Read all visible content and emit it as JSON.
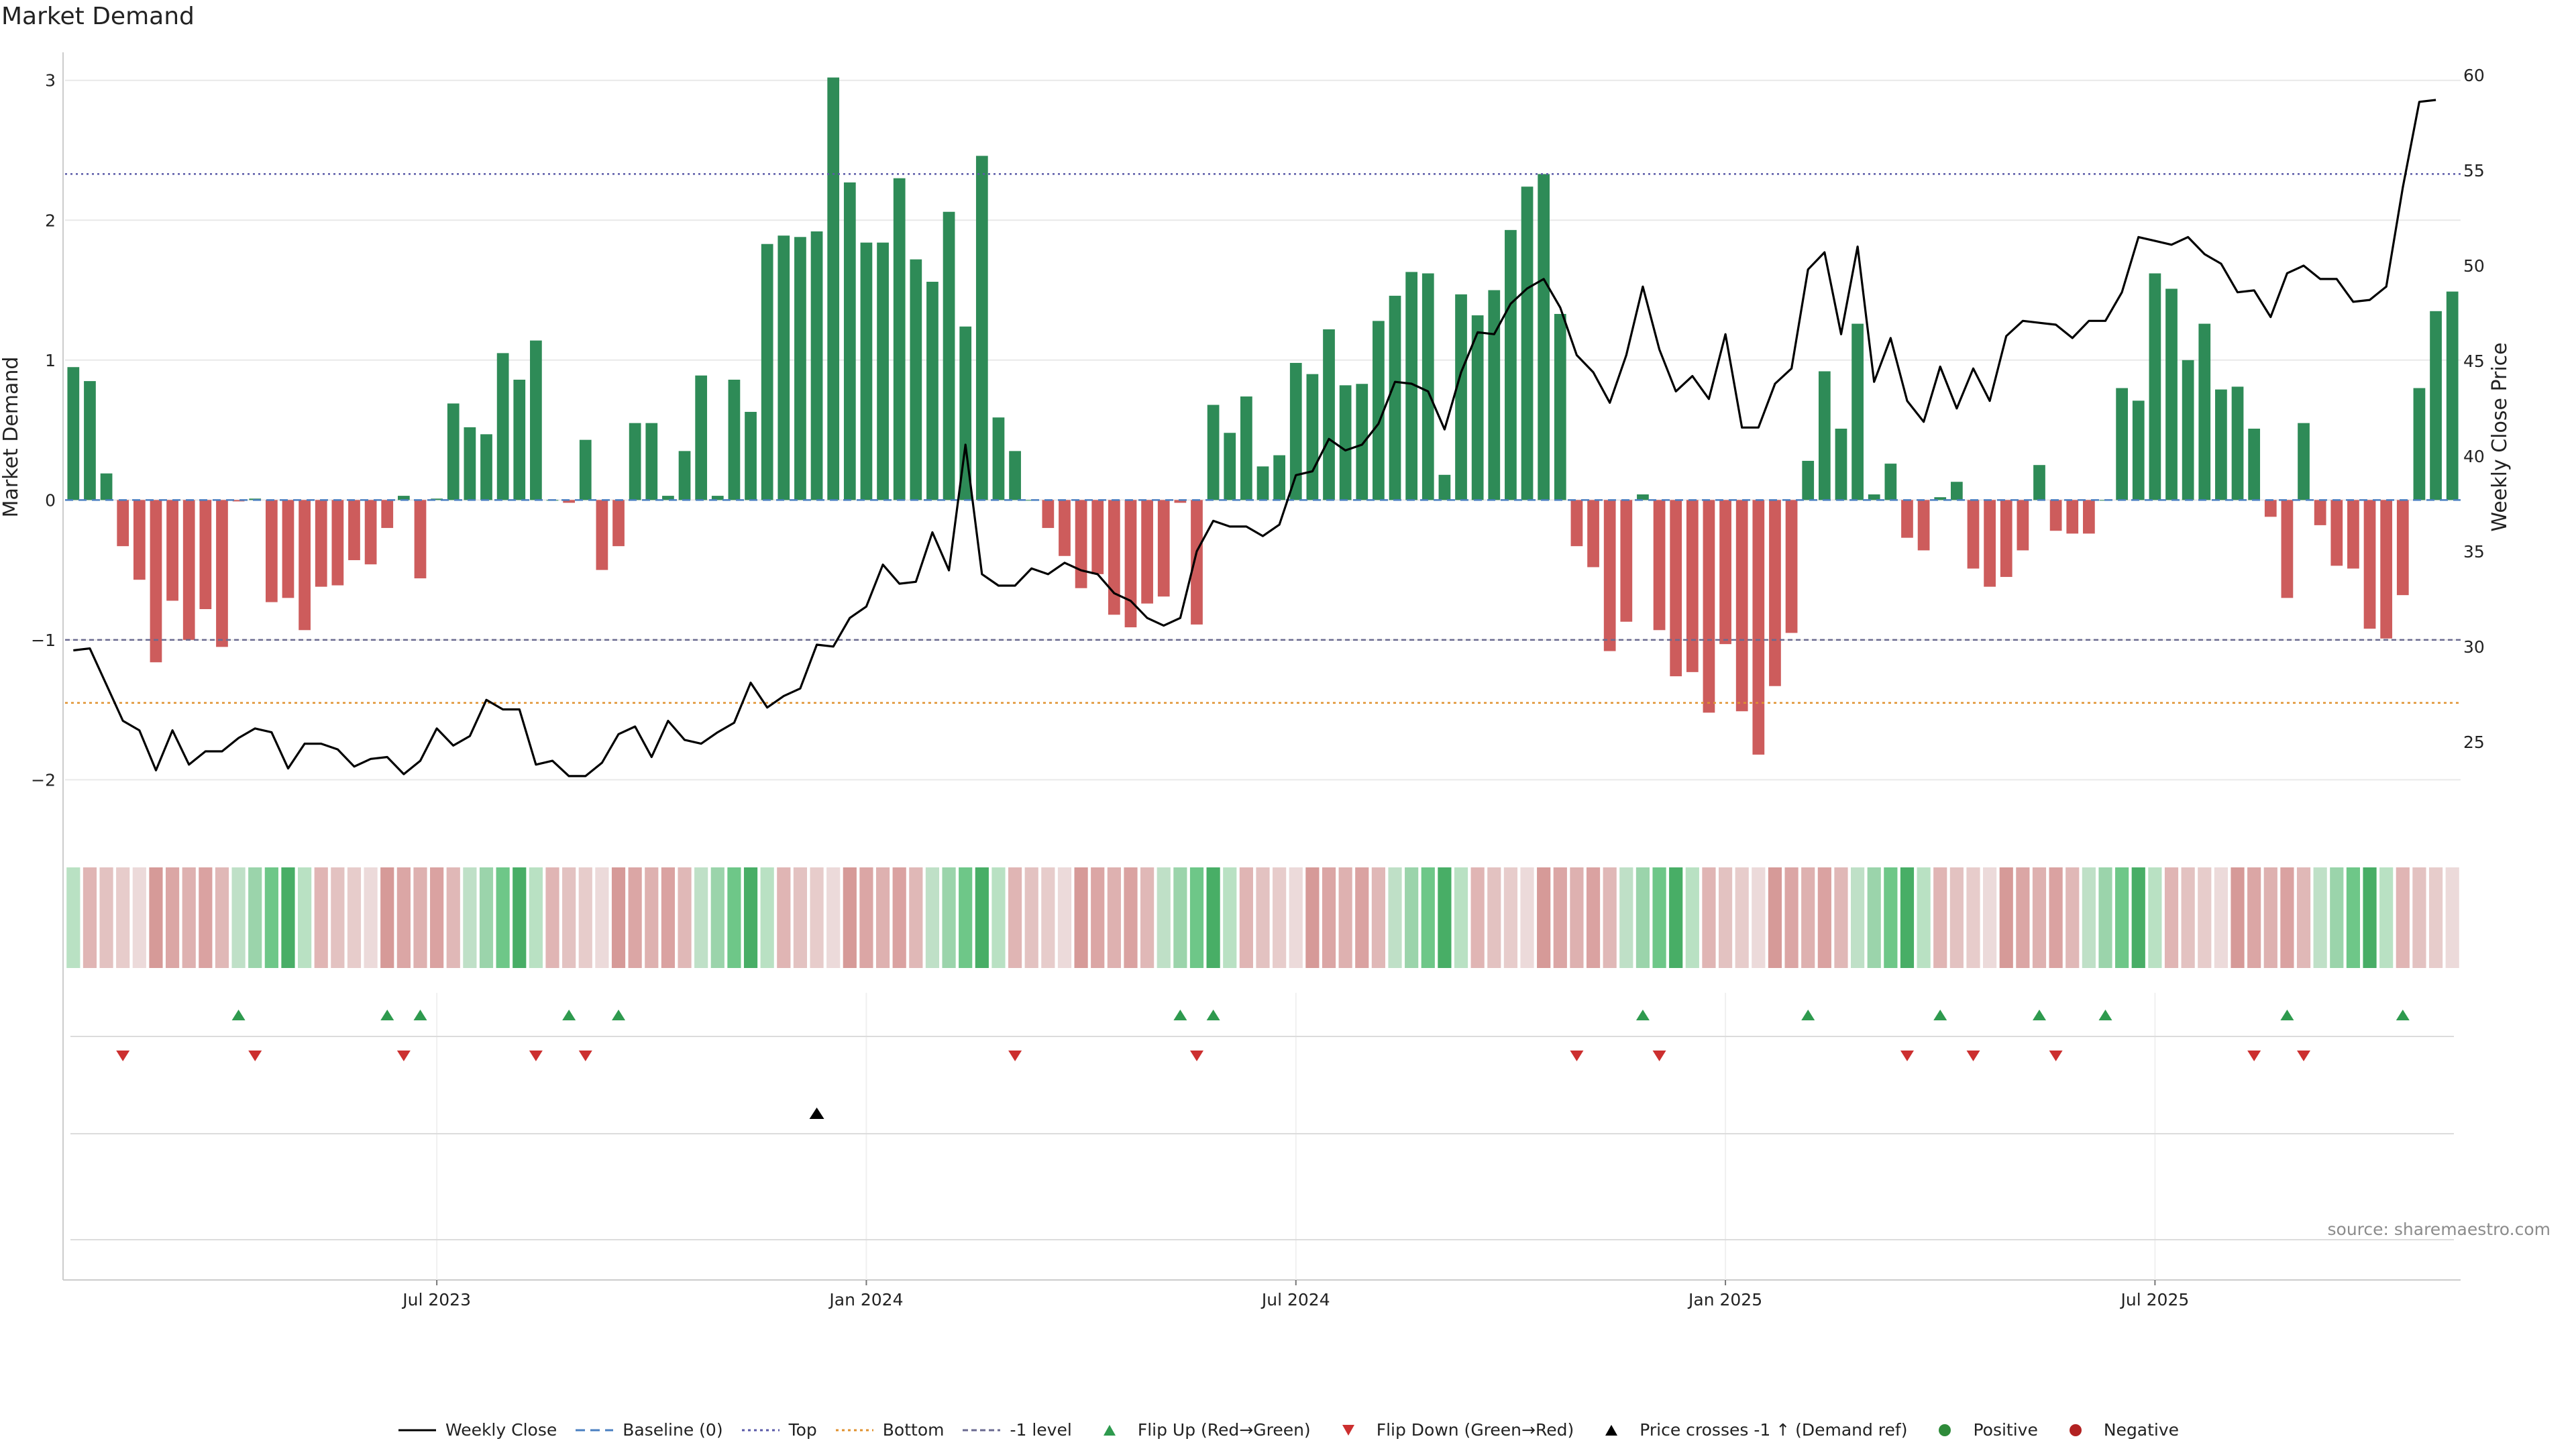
{
  "chart_data": {
    "type": "bar",
    "title": "Market Demand",
    "ylabel": "Market Demand",
    "y2label": "Weekly Close Price",
    "ylim": [
      -2.3,
      3.2
    ],
    "y2lim": [
      20.8,
      61.2
    ],
    "yticks": [
      -2,
      -1,
      0,
      1,
      2,
      3
    ],
    "y2ticks": [
      25,
      30,
      35,
      40,
      45,
      50,
      55,
      60
    ],
    "top_level": 2.33,
    "bottom_level": -1.45,
    "minus1_level": -1,
    "x_tick_labels": [
      {
        "index": 22,
        "label": "Jul 2023"
      },
      {
        "index": 48,
        "label": "Jan 2024"
      },
      {
        "index": 74,
        "label": "Jul 2024"
      },
      {
        "index": 100,
        "label": "Jan 2025"
      },
      {
        "index": 126,
        "label": "Jul 2025"
      }
    ],
    "demand": [
      0.95,
      0.85,
      0.19,
      -0.33,
      -0.57,
      -1.16,
      -0.72,
      -1.0,
      -0.78,
      -1.05,
      -0.01,
      0.01,
      -0.73,
      -0.7,
      -0.93,
      -0.62,
      -0.61,
      -0.43,
      -0.46,
      -0.2,
      0.03,
      -0.56,
      0.01,
      0.69,
      0.52,
      0.47,
      1.05,
      0.86,
      1.14,
      0.0,
      -0.02,
      0.43,
      -0.5,
      -0.33,
      0.55,
      0.55,
      0.03,
      0.35,
      0.89,
      0.03,
      0.86,
      0.63,
      1.83,
      1.89,
      1.88,
      1.92,
      3.02,
      2.27,
      1.84,
      1.84,
      2.3,
      1.72,
      1.56,
      2.06,
      1.24,
      2.46,
      0.59,
      0.35,
      0.0,
      -0.2,
      -0.4,
      -0.63,
      -0.53,
      -0.82,
      -0.91,
      -0.74,
      -0.69,
      -0.02,
      -0.89,
      0.68,
      0.48,
      0.74,
      0.24,
      0.32,
      0.98,
      0.9,
      1.22,
      0.82,
      0.83,
      1.28,
      1.46,
      1.63,
      1.62,
      0.18,
      1.47,
      1.32,
      1.5,
      1.93,
      2.24,
      2.33,
      1.33,
      -0.33,
      -0.48,
      -1.08,
      -0.87,
      0.04,
      -0.93,
      -1.26,
      -1.23,
      -1.52,
      -1.03,
      -1.51,
      -1.82,
      -1.33,
      -0.95,
      0.28,
      0.92,
      0.51,
      1.26,
      0.04,
      0.26,
      -0.27,
      -0.36,
      0.02,
      0.13,
      -0.49,
      -0.62,
      -0.55,
      -0.36,
      0.25,
      -0.22,
      -0.24,
      -0.24,
      0.0,
      0.8,
      0.71,
      1.62,
      1.51,
      1.0,
      1.26,
      0.79,
      0.81,
      0.51,
      -0.12,
      -0.7,
      0.55,
      -0.18,
      -0.47,
      -0.49,
      -0.92,
      -0.99,
      -0.68,
      0.8,
      1.35,
      1.49
    ],
    "close": [
      29.8,
      29.9,
      28.0,
      26.1,
      25.6,
      23.5,
      25.6,
      23.8,
      24.5,
      24.5,
      25.2,
      25.7,
      25.5,
      23.6,
      24.9,
      24.9,
      24.6,
      23.7,
      24.1,
      24.2,
      23.3,
      24.0,
      25.7,
      24.8,
      25.3,
      27.2,
      26.7,
      26.7,
      23.8,
      24.0,
      23.2,
      23.2,
      23.9,
      25.4,
      25.8,
      24.2,
      26.1,
      25.1,
      24.9,
      25.5,
      26.0,
      28.1,
      26.8,
      27.4,
      27.8,
      30.1,
      30.0,
      31.5,
      32.1,
      34.3,
      33.3,
      33.4,
      36.0,
      34.0,
      40.6,
      33.8,
      33.2,
      33.2,
      34.1,
      33.8,
      34.4,
      34.0,
      33.8,
      32.8,
      32.4,
      31.5,
      31.1,
      31.5,
      35.0,
      36.6,
      36.3,
      36.3,
      35.8,
      36.4,
      39.0,
      39.2,
      40.9,
      40.3,
      40.6,
      41.7,
      43.9,
      43.8,
      43.4,
      41.4,
      44.4,
      46.5,
      46.4,
      48.0,
      48.8,
      49.3,
      47.8,
      45.3,
      44.4,
      42.8,
      45.3,
      48.9,
      45.6,
      43.4,
      44.2,
      43.0,
      46.4,
      41.5,
      41.5,
      43.8,
      44.6,
      49.8,
      50.7,
      46.4,
      51.0,
      43.9,
      46.2,
      42.9,
      41.8,
      44.7,
      42.5,
      44.6,
      42.9,
      46.3,
      47.1,
      47.0,
      46.9,
      46.2,
      47.1,
      47.1,
      48.6,
      51.5,
      51.3,
      51.1,
      51.5,
      50.6,
      50.1,
      48.6,
      48.7,
      47.3,
      49.6,
      50.0,
      49.3,
      49.3,
      48.1,
      48.2,
      48.9,
      54.1,
      58.6,
      58.7
    ],
    "heat_rgb": [
      [
        185,
        225,
        195
      ],
      [
        224,
        181,
        180
      ],
      [
        227,
        194,
        193
      ],
      [
        231,
        204,
        203
      ],
      [
        236,
        218,
        218
      ],
      [
        214,
        154,
        152
      ],
      [
        219,
        166,
        165
      ],
      [
        222,
        177,
        176
      ],
      [
        218,
        162,
        161
      ],
      [
        224,
        184,
        183
      ],
      [
        191,
        224,
        199
      ],
      [
        155,
        212,
        171
      ],
      [
        110,
        199,
        136
      ],
      [
        72,
        174,
        102
      ]
    ],
    "heat_lv": [
      0,
      0,
      0,
      0,
      0,
      5,
      5,
      5,
      5,
      5,
      0,
      0,
      0,
      0,
      0,
      0,
      0,
      0,
      0,
      0,
      0,
      0,
      0,
      0,
      0,
      0,
      0,
      0,
      0,
      0,
      0,
      0,
      0,
      0,
      0,
      0,
      0,
      0,
      0,
      0,
      0,
      0,
      0,
      0,
      0,
      0,
      13,
      0,
      0,
      0,
      0,
      0,
      0,
      0,
      0,
      0,
      0,
      0,
      0,
      0,
      0,
      0,
      0,
      0,
      0,
      0,
      0,
      0,
      0,
      0,
      0,
      0,
      0,
      0,
      0,
      0,
      0,
      0,
      0,
      0,
      0,
      0,
      0,
      0,
      0,
      0,
      0,
      0,
      0,
      0,
      0,
      0,
      0,
      0,
      0,
      0,
      0,
      0,
      0,
      0,
      0,
      0,
      0,
      0,
      0,
      0,
      0,
      0,
      0,
      0,
      0,
      0,
      0,
      0,
      0,
      0,
      0,
      0,
      0,
      0,
      0,
      0,
      0,
      0,
      0,
      0,
      0,
      0,
      0,
      0,
      0,
      0,
      0,
      0,
      0,
      0,
      0,
      0,
      0,
      0,
      0,
      0,
      0,
      0,
      0
    ],
    "flip_up_idx": [
      10,
      19,
      21,
      30,
      33,
      67,
      69,
      95,
      105,
      113,
      119,
      123,
      134,
      141
    ],
    "flip_down_idx": [
      3,
      11,
      20,
      28,
      31,
      57,
      68,
      91,
      96,
      111,
      115,
      120,
      132,
      135
    ],
    "cross_up_idx": [
      45
    ]
  },
  "source": "source: sharemaestro.com",
  "legend": [
    {
      "key": "weekly_close",
      "label": "Weekly Close",
      "color": "#000000"
    },
    {
      "key": "baseline",
      "label": "Baseline (0)",
      "color": "#4a7fc1"
    },
    {
      "key": "top",
      "label": "Top",
      "color": "#5a5aa8"
    },
    {
      "key": "bottom",
      "label": "Bottom",
      "color": "#e0922f"
    },
    {
      "key": "minus1",
      "label": "-1 level",
      "color": "#6a6a90"
    },
    {
      "key": "flip_up",
      "label": "Flip Up (Red→Green)",
      "color": "#2e9a4e"
    },
    {
      "key": "flip_down",
      "label": "Flip Down (Green→Red)",
      "color": "#cc2f2f"
    },
    {
      "key": "cross",
      "label": "Price crosses -1 ↑ (Demand ref)",
      "color": "#000000"
    },
    {
      "key": "positive",
      "label": "Positive",
      "color": "#2e8b3a"
    },
    {
      "key": "negative",
      "label": "Negative",
      "color": "#b22222"
    }
  ],
  "colors": {
    "pos_bar": "#2e8b57",
    "neg_bar": "#cd5c5c",
    "grid": "#e9e9e9",
    "axis": "#cccccc"
  }
}
